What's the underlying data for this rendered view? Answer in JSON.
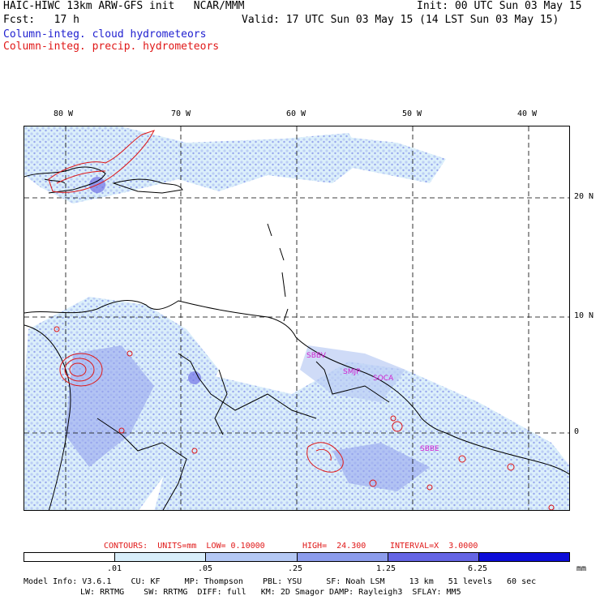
{
  "header": {
    "left_line1": "HAIC-HIWC 13km ARW-GFS init   NCAR/MMM",
    "left_line2": "Fcst:   17 h",
    "right_line1": "Init: 00 UTC Sun 03 May 15",
    "right_line2": "Valid: 17 UTC Sun 03 May 15 (14 LST Sun 03 May 15)",
    "legend_cloud": "Column-integ. cloud hydrometeors",
    "legend_precip": "Column-integ. precip. hydrometeors"
  },
  "colors": {
    "cloud": "#2020d0",
    "precip": "#e01818",
    "station": "#d020d0",
    "shade": [
      "#ffffff",
      "#d8eefa",
      "#b4c8f4",
      "#8c9cec",
      "#6464e4",
      "#3030dc",
      "#0c0cd8"
    ]
  },
  "longitude_labels": [
    "80 W",
    "70 W",
    "60 W",
    "50 W",
    "40 W"
  ],
  "latitude_labels": [
    "20 N",
    "10 N",
    "0"
  ],
  "stations": [
    "SBBV",
    "SMJP",
    "SOCA",
    "SBBE"
  ],
  "contours": {
    "label": "CONTOURS:  UNITS=mm  LOW= 0.10000",
    "high": "HIGH=  24.300",
    "interval": "INTERVAL=X  3.0000"
  },
  "colorbar": {
    "ticks": [
      ".01",
      ".05",
      ".25",
      "1.25",
      "6.25"
    ],
    "units": "mm"
  },
  "footer": {
    "line1": "Model Info: V3.6.1    CU: KF     MP: Thompson    PBL: YSU     SF: Noah LSM     13 km   51 levels   60 sec",
    "line2": "LW: RRTMG    SW: RRTMG  DIFF: full   KM: 2D Smagor DAMP: Rayleigh3  SFLAY: MM5"
  }
}
